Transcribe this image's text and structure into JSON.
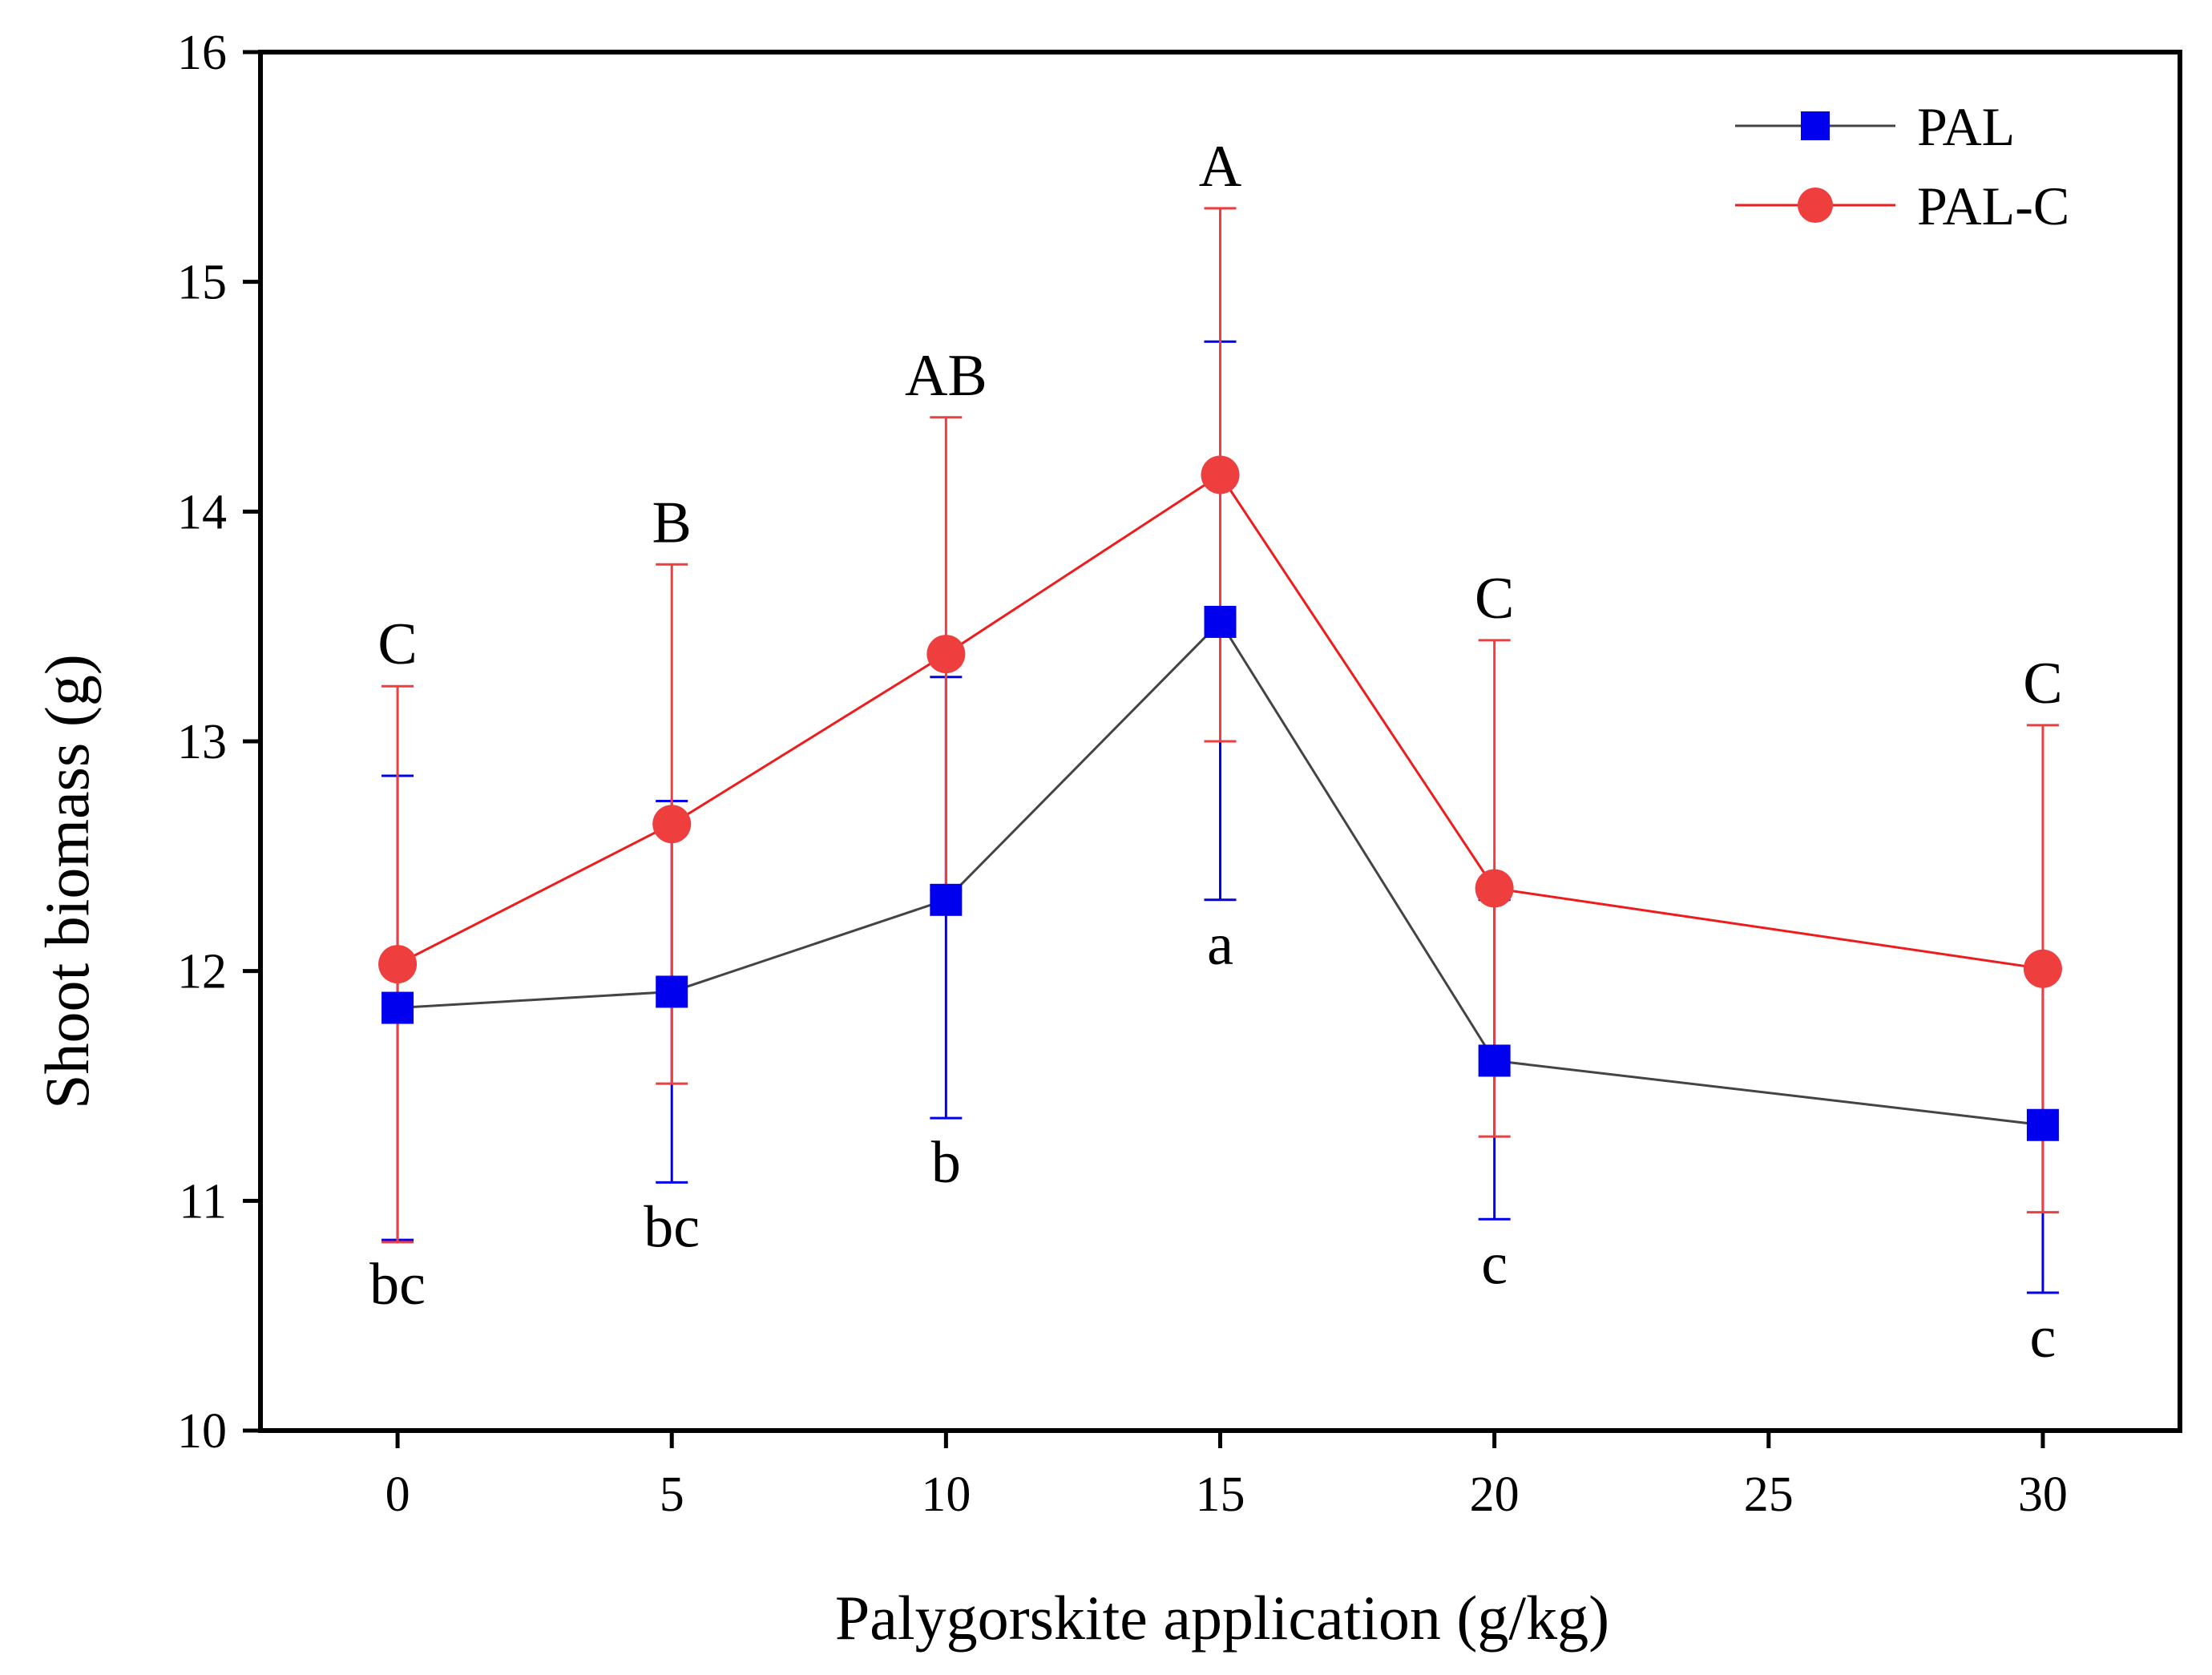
{
  "chart_data": {
    "type": "line",
    "xlabel": "Palygorskite application (g/kg)",
    "ylabel": "Shoot biomass (g)",
    "xlim": [
      -2.5,
      32.5
    ],
    "ylim": [
      10,
      16
    ],
    "x_ticks": [
      0,
      5,
      10,
      15,
      20,
      25,
      30
    ],
    "y_ticks": [
      10,
      11,
      12,
      13,
      14,
      15,
      16
    ],
    "legend_position": "top-right",
    "series": [
      {
        "name": "PAL",
        "color": "#0000ee",
        "line_color": "#444444",
        "marker": "square",
        "x": [
          0,
          5,
          10,
          15,
          20,
          30
        ],
        "values": [
          11.84,
          11.91,
          12.31,
          13.52,
          11.61,
          11.33
        ],
        "error_upper": [
          12.85,
          12.74,
          13.28,
          14.74,
          12.31,
          12.05
        ],
        "error_lower": [
          10.83,
          11.08,
          11.36,
          12.31,
          10.92,
          10.6
        ],
        "labels": [
          "bc",
          "bc",
          "b",
          "a",
          "c",
          "c"
        ]
      },
      {
        "name": "PAL-C",
        "color": "#ee3e3e",
        "line_color": "#ee1c1c",
        "marker": "circle",
        "x": [
          0,
          5,
          10,
          15,
          20,
          30
        ],
        "values": [
          12.03,
          12.64,
          13.38,
          14.16,
          12.36,
          12.01
        ],
        "error_upper": [
          13.24,
          13.77,
          14.41,
          15.32,
          13.44,
          13.07
        ],
        "error_lower": [
          10.82,
          11.51,
          12.35,
          13.0,
          11.28,
          10.95
        ],
        "labels": [
          "C",
          "B",
          "AB",
          "A",
          "C",
          "C"
        ]
      }
    ]
  }
}
